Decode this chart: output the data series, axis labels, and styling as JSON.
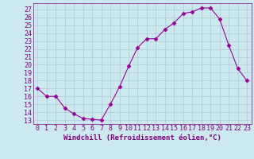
{
  "x": [
    0,
    1,
    2,
    3,
    4,
    5,
    6,
    7,
    8,
    9,
    10,
    11,
    12,
    13,
    14,
    15,
    16,
    17,
    18,
    19,
    20,
    21,
    22,
    23
  ],
  "y": [
    17.0,
    16.0,
    16.0,
    14.5,
    13.8,
    13.2,
    13.1,
    13.0,
    15.0,
    17.2,
    19.8,
    22.2,
    23.3,
    23.3,
    24.5,
    25.3,
    26.5,
    26.7,
    27.2,
    27.2,
    25.8,
    22.5,
    19.5,
    18.0
  ],
  "line_color": "#990099",
  "marker": "D",
  "marker_size": 2.5,
  "bg_color": "#cce9f0",
  "grid_color": "#b0c8d0",
  "xlabel": "Windchill (Refroidissement éolien,°C)",
  "ylabel_ticks": [
    13,
    14,
    15,
    16,
    17,
    18,
    19,
    20,
    21,
    22,
    23,
    24,
    25,
    26,
    27
  ],
  "ylim": [
    12.5,
    27.8
  ],
  "xlim": [
    -0.5,
    23.5
  ],
  "xlabel_fontsize": 6.5,
  "tick_fontsize": 6.0,
  "label_color": "#800080"
}
